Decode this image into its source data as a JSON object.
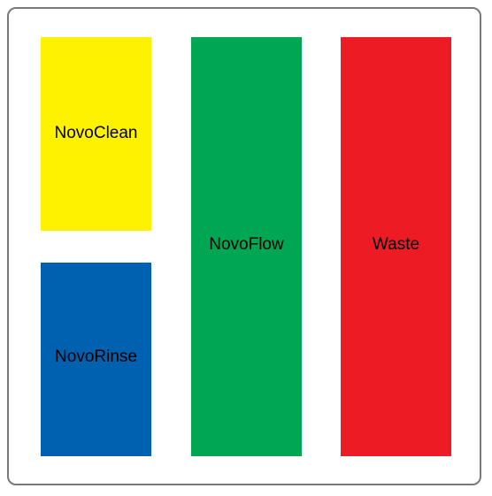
{
  "containers": [
    {
      "id": "c-clean",
      "label": "NovoClean",
      "color": "#fff200"
    },
    {
      "id": "c-rinse",
      "label": "NovoRinse",
      "color": "#0061b0"
    },
    {
      "id": "c-flow",
      "label": "NovoFlow",
      "color": "#00a651"
    },
    {
      "id": "c-waste",
      "label": "Waste",
      "color": "#ed1c24"
    }
  ]
}
